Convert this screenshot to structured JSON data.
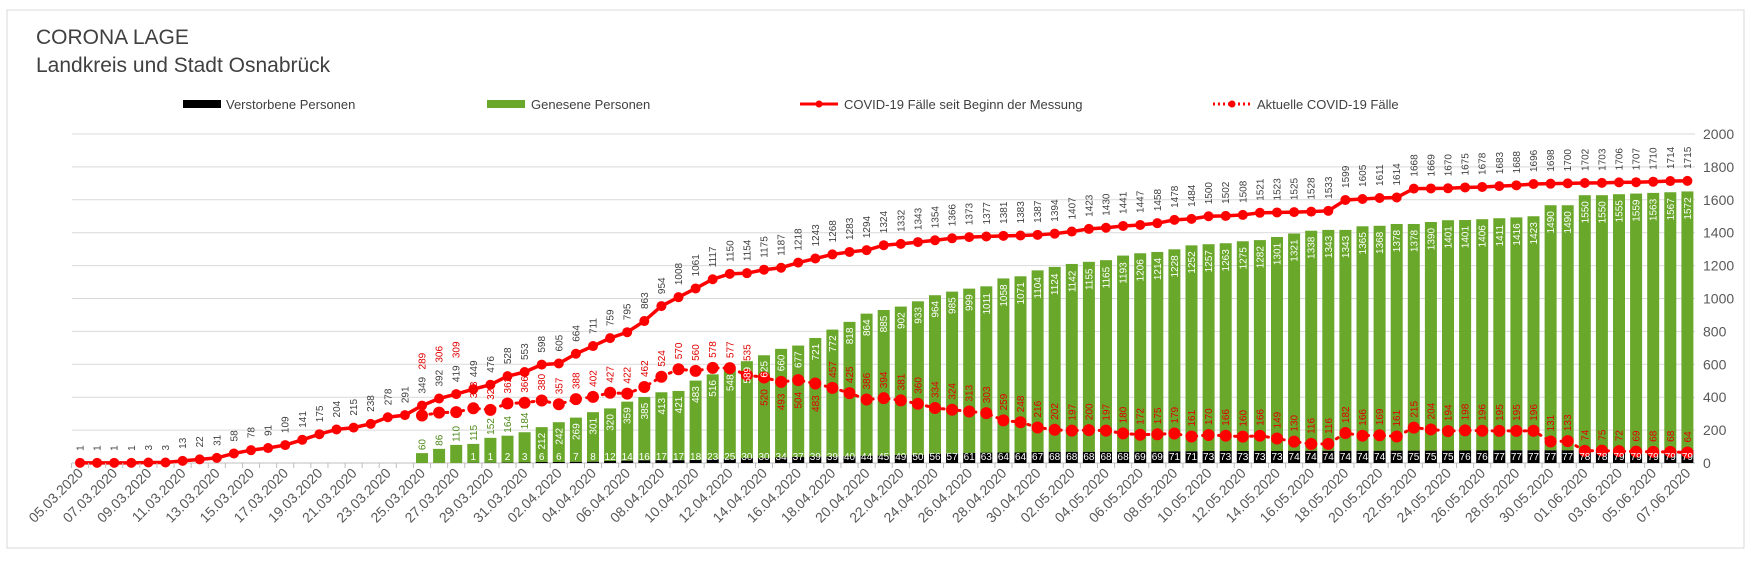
{
  "chart_data": {
    "type": "bar",
    "title": "CORONA LAGE",
    "subtitle": "Landkreis und Stadt Osnabrück",
    "xlabel": "",
    "ylabel": "",
    "ylim": [
      0,
      2000
    ],
    "y_ticks": [
      "0",
      "200",
      "400",
      "600",
      "800",
      "1000",
      "1200",
      "1400",
      "1600",
      "1800",
      "2000"
    ],
    "grid": true,
    "legend_position": "top",
    "colors": {
      "deaths": "#000000",
      "recovered": "#6AA82C",
      "cumulative": "#FF0000",
      "active": "#FF0000",
      "grid": "#D9D9D9",
      "text": "#595959"
    },
    "categories": [
      "05.03.2020",
      "06.03.2020",
      "07.03.2020",
      "08.03.2020",
      "09.03.2020",
      "10.03.2020",
      "11.03.2020",
      "12.03.2020",
      "13.03.2020",
      "14.03.2020",
      "15.03.2020",
      "16.03.2020",
      "17.03.2020",
      "18.03.2020",
      "19.03.2020",
      "20.03.2020",
      "21.03.2020",
      "22.03.2020",
      "23.03.2020",
      "24.03.2020",
      "25.03.2020",
      "26.03.2020",
      "27.03.2020",
      "28.03.2020",
      "29.03.2020",
      "30.03.2020",
      "31.03.2020",
      "01.04.2020",
      "02.04.2020",
      "03.04.2020",
      "04.04.2020",
      "05.04.2020",
      "06.04.2020",
      "07.04.2020",
      "08.04.2020",
      "09.04.2020",
      "10.04.2020",
      "11.04.2020",
      "12.04.2020",
      "13.04.2020",
      "14.04.2020",
      "15.04.2020",
      "16.04.2020",
      "17.04.2020",
      "18.04.2020",
      "19.04.2020",
      "20.04.2020",
      "21.04.2020",
      "22.04.2020",
      "23.04.2020",
      "24.04.2020",
      "25.04.2020",
      "26.04.2020",
      "27.04.2020",
      "28.04.2020",
      "29.04.2020",
      "30.04.2020",
      "01.05.2020",
      "02.05.2020",
      "03.05.2020",
      "04.05.2020",
      "05.05.2020",
      "06.05.2020",
      "07.05.2020",
      "08.05.2020",
      "09.05.2020",
      "10.05.2020",
      "11.05.2020",
      "12.05.2020",
      "13.05.2020",
      "14.05.2020",
      "15.05.2020",
      "16.05.2020",
      "17.05.2020",
      "18.05.2020",
      "19.05.2020",
      "20.05.2020",
      "21.05.2020",
      "22.05.2020",
      "23.05.2020",
      "24.05.2020",
      "25.05.2020",
      "26.05.2020",
      "27.05.2020",
      "28.05.2020",
      "29.05.2020",
      "30.05.2020",
      "31.05.2020",
      "01.06.2020",
      "02.06.2020",
      "03.06.2020",
      "04.06.2020",
      "05.06.2020",
      "06.06.2020",
      "07.06.2020"
    ],
    "x_tick_labels": [
      "05.03.2020",
      "07.03.2020",
      "09.03.2020",
      "11.03.2020",
      "13.03.2020",
      "15.03.2020",
      "17.03.2020",
      "19.03.2020",
      "21.03.2020",
      "23.03.2020",
      "25.03.2020",
      "27.03.2020",
      "29.03.2020",
      "31.03.2020",
      "02.04.2020",
      "04.04.2020",
      "06.04.2020",
      "08.04.2020",
      "10.04.2020",
      "12.04.2020",
      "14.04.2020",
      "16.04.2020",
      "18.04.2020",
      "20.04.2020",
      "22.04.2020",
      "24.04.2020",
      "26.04.2020",
      "28.04.2020",
      "30.04.2020",
      "02.05.2020",
      "04.05.2020",
      "06.05.2020",
      "08.05.2020",
      "10.05.2020",
      "12.05.2020",
      "14.05.2020",
      "16.05.2020",
      "18.05.2020",
      "20.05.2020",
      "22.05.2020",
      "24.05.2020",
      "26.05.2020",
      "28.05.2020",
      "30.05.2020",
      "01.06.2020",
      "03.06.2020",
      "05.06.2020",
      "07.06.2020"
    ],
    "series": [
      {
        "name": "Verstorbene Personen",
        "type": "bar-stacked",
        "values": [
          null,
          null,
          null,
          null,
          null,
          null,
          null,
          null,
          null,
          null,
          null,
          null,
          null,
          null,
          null,
          null,
          null,
          null,
          null,
          null,
          0,
          0,
          0,
          1,
          1,
          2,
          3,
          6,
          6,
          7,
          8,
          12,
          14,
          16,
          17,
          17,
          18,
          23,
          25,
          30,
          30,
          34,
          37,
          39,
          39,
          40,
          44,
          45,
          49,
          50,
          56,
          57,
          61,
          63,
          64,
          64,
          67,
          68,
          68,
          68,
          68,
          68,
          69,
          69,
          71,
          71,
          73,
          73,
          73,
          73,
          73,
          74,
          74,
          74,
          74,
          74,
          74,
          75,
          75,
          75,
          75,
          76,
          76,
          77,
          77,
          77,
          77,
          77,
          78,
          78,
          79,
          79,
          79,
          79,
          79
        ]
      },
      {
        "name": "Genesene Personen",
        "type": "bar-stacked",
        "values": [
          null,
          null,
          null,
          null,
          null,
          null,
          null,
          null,
          null,
          null,
          null,
          null,
          null,
          null,
          null,
          null,
          null,
          null,
          null,
          null,
          60,
          86,
          110,
          115,
          152,
          164,
          184,
          212,
          242,
          269,
          301,
          320,
          359,
          385,
          413,
          421,
          483,
          516,
          548,
          589,
          625,
          660,
          677,
          721,
          772,
          818,
          864,
          885,
          902,
          933,
          964,
          985,
          999,
          1011,
          1058,
          1071,
          1104,
          1124,
          1142,
          1155,
          1165,
          1193,
          1206,
          1214,
          1228,
          1252,
          1257,
          1263,
          1275,
          1282,
          1301,
          1321,
          1338,
          1343,
          1343,
          1365,
          1368,
          1378,
          1378,
          1390,
          1401,
          1401,
          1406,
          1411,
          1416,
          1423,
          1490,
          1490,
          1550,
          1550,
          1555,
          1559,
          1563,
          1567,
          1572
        ]
      },
      {
        "name": "COVID-19 Fälle seit Beginn der Messung",
        "type": "line",
        "values": [
          1,
          1,
          1,
          1,
          3,
          3,
          13,
          22,
          31,
          58,
          78,
          91,
          109,
          141,
          175,
          204,
          215,
          238,
          278,
          291,
          349,
          392,
          419,
          449,
          476,
          528,
          553,
          598,
          605,
          664,
          711,
          759,
          795,
          863,
          954,
          1008,
          1061,
          1117,
          1150,
          1154,
          1175,
          1187,
          1218,
          1243,
          1268,
          1283,
          1294,
          1324,
          1332,
          1343,
          1354,
          1366,
          1373,
          1377,
          1381,
          1383,
          1387,
          1394,
          1407,
          1423,
          1430,
          1441,
          1447,
          1458,
          1478,
          1484,
          1500,
          1502,
          1508,
          1521,
          1523,
          1525,
          1528,
          1533,
          1599,
          1605,
          1611,
          1614,
          1668,
          1669,
          1670,
          1675,
          1678,
          1683,
          1688,
          1696,
          1698,
          1700,
          1702,
          1703,
          1706,
          1707,
          1710,
          1714,
          1715
        ]
      },
      {
        "name": "Aktuelle COVID-19 Fälle",
        "type": "line-dotted",
        "values": [
          null,
          null,
          null,
          null,
          null,
          null,
          null,
          null,
          null,
          null,
          null,
          null,
          null,
          null,
          null,
          null,
          null,
          null,
          null,
          null,
          289,
          306,
          309,
          333,
          323,
          362,
          366,
          380,
          357,
          388,
          402,
          427,
          422,
          462,
          524,
          570,
          560,
          578,
          577,
          535,
          520,
          493,
          504,
          483,
          457,
          425,
          386,
          394,
          381,
          360,
          334,
          324,
          313,
          303,
          259,
          248,
          216,
          202,
          197,
          200,
          197,
          180,
          172,
          175,
          179,
          161,
          170,
          166,
          160,
          166,
          149,
          130,
          116,
          116,
          182,
          166,
          169,
          161,
          215,
          204,
          194,
          198,
          196,
          195,
          195,
          196,
          131,
          133,
          74,
          75,
          72,
          69,
          68,
          68,
          64
        ]
      }
    ]
  }
}
